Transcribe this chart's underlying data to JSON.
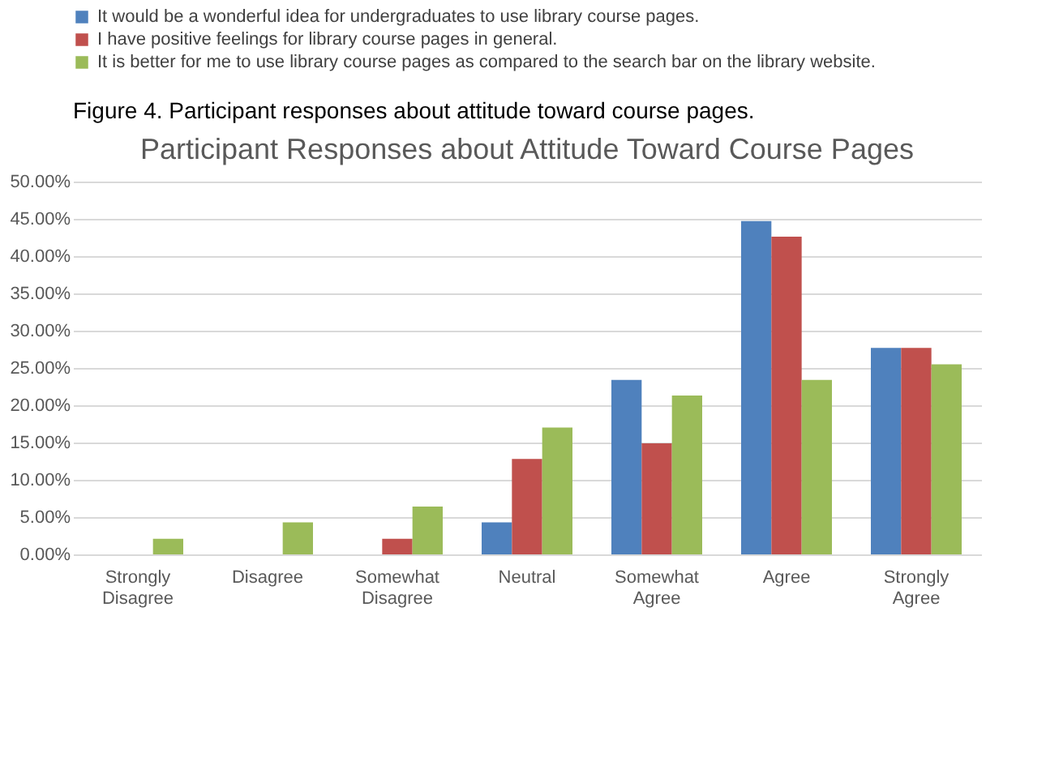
{
  "chart_data": {
    "type": "bar",
    "title": "Participant Responses about Attitude Toward Course Pages",
    "annotations": [
      "Figure 4. Participant responses about attitude toward course pages."
    ],
    "categories": [
      "Strongly Disagree",
      "Disagree",
      "Somewhat Disagree",
      "Neutral",
      "Somewhat Agree",
      "Agree",
      "Strongly Agree"
    ],
    "series": [
      {
        "name": "It would be a wonderful idea for undergraduates to use library course pages.",
        "color": "#4f81bd",
        "values": [
          0,
          0,
          0,
          4.3,
          23.4,
          44.7,
          27.7
        ]
      },
      {
        "name": "I have positive feelings for library course pages in general.",
        "color": "#c0504d",
        "values": [
          0,
          0,
          2.1,
          12.8,
          14.9,
          42.6,
          27.7
        ]
      },
      {
        "name": "It is better for me to use library course pages as compared to the search bar on the library website.",
        "color": "#9bbb59",
        "values": [
          2.1,
          4.3,
          6.4,
          17.0,
          21.3,
          23.4,
          25.5
        ]
      }
    ],
    "ylim": [
      0,
      50
    ],
    "yticks": [
      {
        "value": 0,
        "label": "0.00%"
      },
      {
        "value": 5,
        "label": "5.00%"
      },
      {
        "value": 10,
        "label": "10.00%"
      },
      {
        "value": 15,
        "label": "15.00%"
      },
      {
        "value": 20,
        "label": "20.00%"
      },
      {
        "value": 25,
        "label": "25.00%"
      },
      {
        "value": 30,
        "label": "30.00%"
      },
      {
        "value": 35,
        "label": "35.00%"
      },
      {
        "value": 40,
        "label": "40.00%"
      },
      {
        "value": 45,
        "label": "45.00%"
      },
      {
        "value": 50,
        "label": "50.00%"
      }
    ],
    "grid": "y",
    "legend": "top"
  }
}
